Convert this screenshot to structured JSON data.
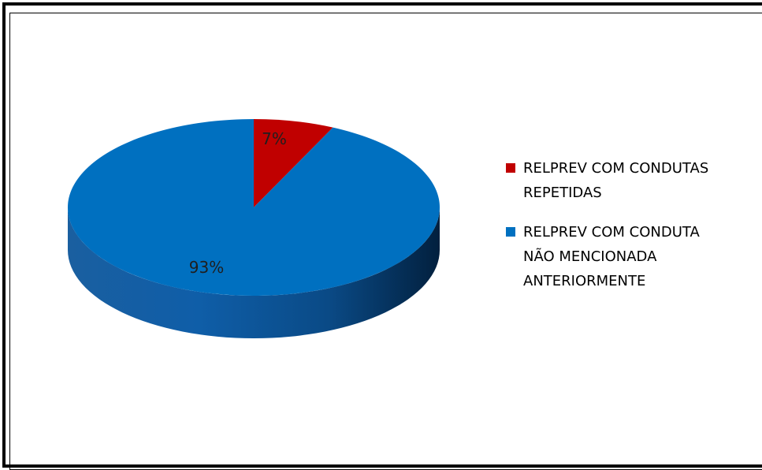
{
  "chart_data": {
    "type": "pie",
    "title": "",
    "three_d": true,
    "legend_position": "right",
    "slices": [
      {
        "label": "RELPREV COM CONDUTAS REPETIDAS",
        "value": 7,
        "data_label": "7%",
        "color": "#C00000"
      },
      {
        "label": "RELPREV COM CONDUTA NÃO MENCIONADA ANTERIORMENTE",
        "value": 93,
        "data_label": "93%",
        "color": "#0070C0"
      }
    ]
  }
}
